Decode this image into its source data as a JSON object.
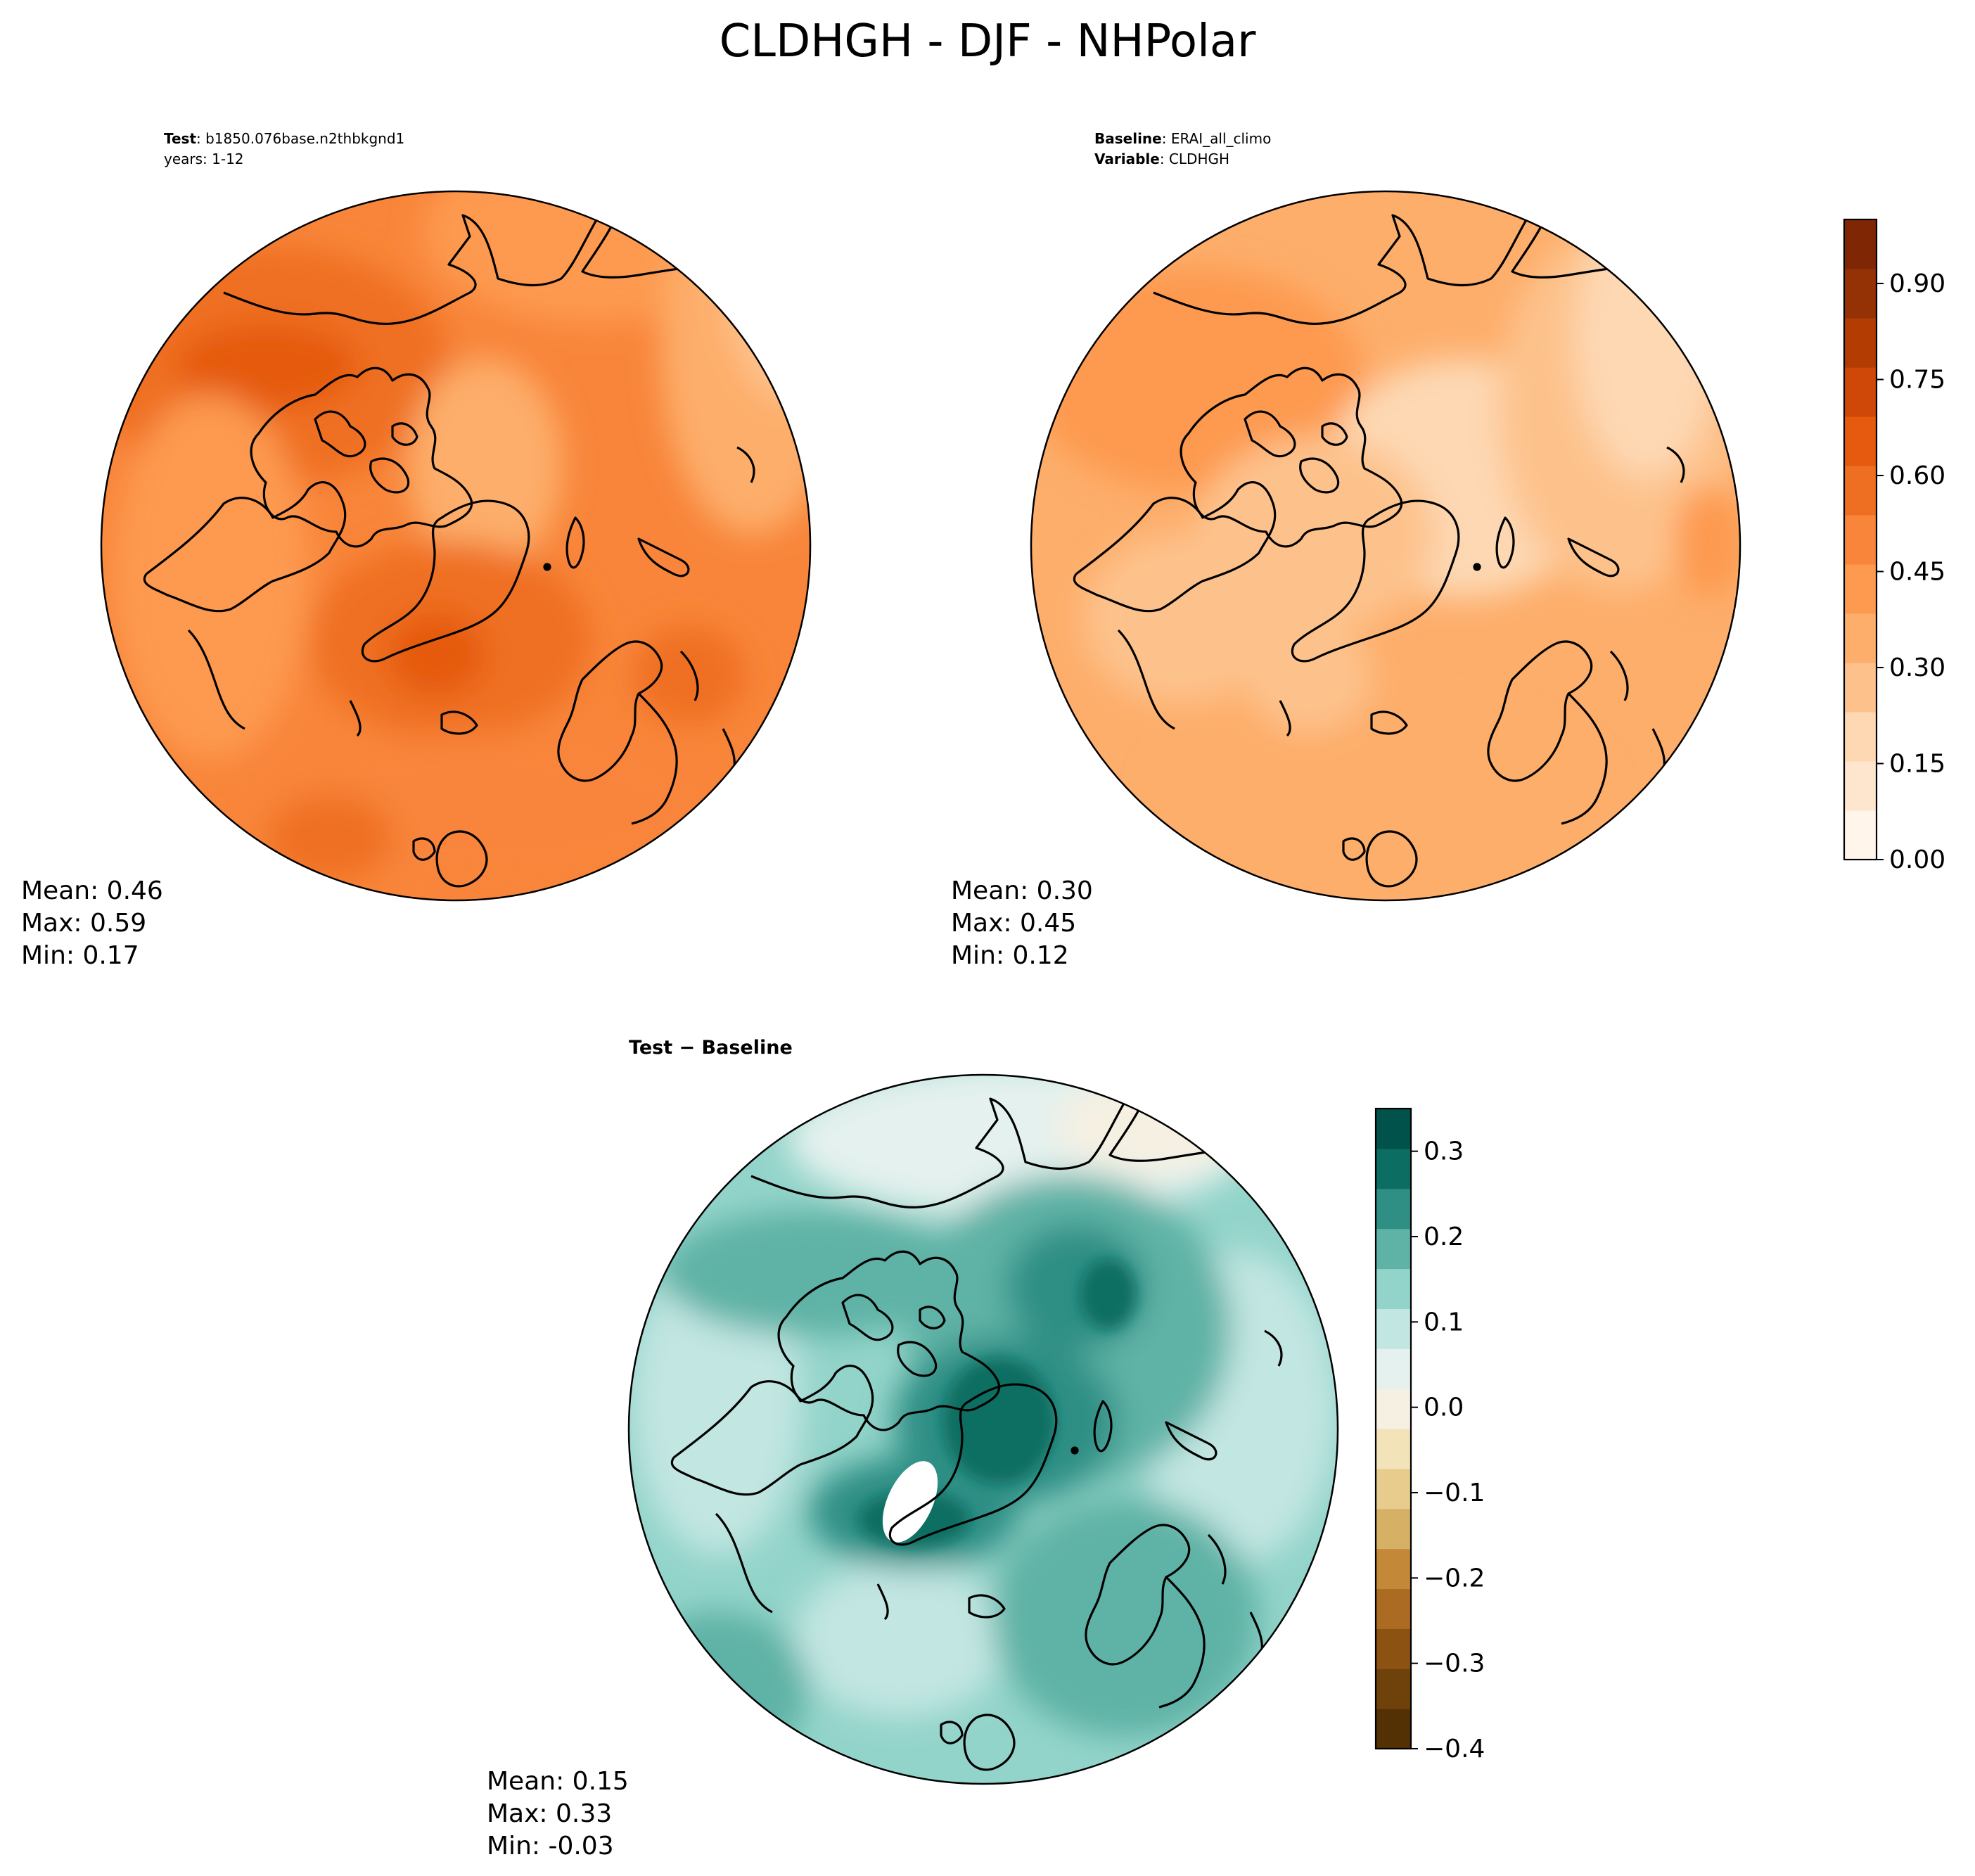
{
  "figure_title": "CLDHGH - DJF - NHPolar",
  "colors": {
    "orange_scale": [
      "#fff5eb",
      "#fee6ce",
      "#fdd8b3",
      "#fdc28c",
      "#fdae6b",
      "#fd9a4f",
      "#f8853a",
      "#ef6f22",
      "#e55a0f",
      "#d04807",
      "#b33c03",
      "#953205",
      "#7f2704"
    ],
    "teal_brown_scale": [
      "#543005",
      "#6e420a",
      "#8c5212",
      "#ab6b22",
      "#c38838",
      "#d6b064",
      "#e7cc8e",
      "#f2e3b8",
      "#f5f0e2",
      "#e4f1ee",
      "#c2e6e2",
      "#93d4ca",
      "#5fb2a6",
      "#2f8f85",
      "#0c6e62",
      "#01524a"
    ],
    "outline": "#000000"
  },
  "panels": {
    "test": {
      "heading_bold": "Test",
      "heading_value": ": b1850.076base.n2thbkgnd1",
      "heading_line2": "years: 1-12",
      "stats": {
        "mean": "Mean:  0.46",
        "max": "Max:  0.59",
        "min": "Min:  0.17"
      }
    },
    "baseline": {
      "heading_bold": "Baseline",
      "heading_value": ": ERAI_all_climo",
      "heading2_bold": "Variable",
      "heading2_value": ": CLDHGH",
      "stats": {
        "mean": "Mean:  0.30",
        "max": "Max:  0.45",
        "min": "Min:  0.12"
      }
    },
    "diff": {
      "heading": "Test − Baseline",
      "stats": {
        "mean": "Mean:  0.15",
        "max": "Max:  0.33",
        "min": "Min: -0.03"
      }
    }
  },
  "chart_data": [
    {
      "type": "heatmap",
      "name": "Test",
      "projection": "North polar stereographic",
      "mean": 0.46,
      "max": 0.59,
      "min": 0.17,
      "colorbar": "shared_orange"
    },
    {
      "type": "heatmap",
      "name": "Baseline",
      "projection": "North polar stereographic",
      "mean": 0.3,
      "max": 0.45,
      "min": 0.12,
      "colorbar": {
        "range": [
          0.0,
          1.0
        ],
        "levels": 13,
        "ticks": [
          0.0,
          0.15,
          0.3,
          0.45,
          0.6,
          0.75,
          0.9
        ],
        "tick_labels": [
          "0.00",
          "0.15",
          "0.30",
          "0.45",
          "0.60",
          "0.75",
          "0.90"
        ]
      }
    },
    {
      "type": "heatmap",
      "name": "Test - Baseline",
      "projection": "North polar stereographic",
      "mean": 0.15,
      "max": 0.33,
      "min": -0.03,
      "colorbar": {
        "range": [
          -0.4,
          0.35
        ],
        "levels": 16,
        "ticks": [
          -0.4,
          -0.3,
          -0.2,
          -0.1,
          0.0,
          0.1,
          0.2,
          0.3
        ],
        "tick_labels": [
          "−0.4",
          "−0.3",
          "−0.2",
          "−0.1",
          "0.0",
          "0.1",
          "0.2",
          "0.3"
        ]
      }
    }
  ]
}
